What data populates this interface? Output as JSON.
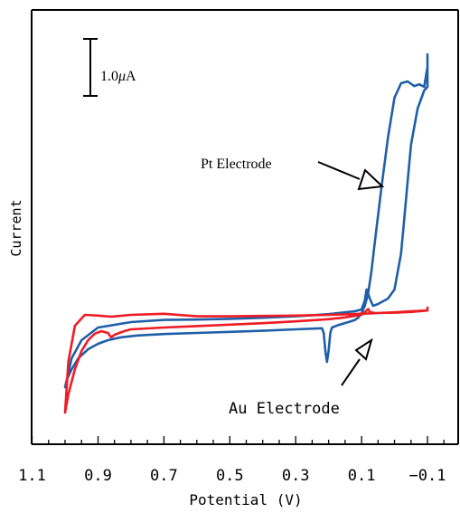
{
  "chart_data": {
    "type": "line",
    "xlabel": "Potential (V)",
    "ylabel": "Current",
    "xlim": [
      1.1,
      -0.15
    ],
    "ylim": [
      -0.95,
      9.0
    ],
    "x_axis_reversed": true,
    "x_ticks": [
      1.1,
      0.9,
      0.7,
      0.5,
      0.3,
      0.1,
      -0.1
    ],
    "x_tick_labels": [
      "1.1",
      "0.9",
      "0.7",
      "0.5",
      "0.3",
      "0.1",
      "−0.1"
    ],
    "grid": false,
    "scale_bar": {
      "label_prefix": "1.0",
      "label_mu": "μ",
      "label_unit": "A",
      "value_uA": 1.0
    },
    "annotations": [
      {
        "text": "Pt Electrode"
      },
      {
        "text": "Au Electrode"
      }
    ],
    "series": [
      {
        "color": "#1f5fa8",
        "curve_label": "Pt Electrode",
        "x": [
          1.0,
          0.995,
          0.98,
          0.96,
          0.93,
          0.9,
          0.87,
          0.83,
          0.78,
          0.7,
          0.6,
          0.5,
          0.4,
          0.3,
          0.22,
          0.215,
          0.21,
          0.205,
          0.2,
          0.195,
          0.19,
          0.17,
          0.14,
          0.12,
          0.11,
          0.1,
          0.09,
          0.08,
          0.07,
          0.06,
          0.04,
          0.02,
          0.0,
          -0.02,
          -0.04,
          -0.06,
          -0.075,
          -0.09,
          -0.1,
          -0.1,
          -0.1,
          -0.09,
          -0.07,
          -0.05,
          -0.04,
          -0.03,
          -0.02,
          0.0,
          0.02,
          0.05,
          0.065,
          0.075,
          0.085,
          0.09,
          0.1,
          0.12,
          0.15,
          0.18,
          0.2,
          0.25,
          0.3,
          0.4,
          0.5,
          0.6,
          0.7,
          0.8,
          0.9,
          0.95,
          0.98,
          0.99,
          0.995,
          1.0
        ],
        "y": [
          -0.7,
          -0.5,
          -0.2,
          0.1,
          0.35,
          0.5,
          0.6,
          0.68,
          0.73,
          0.77,
          0.8,
          0.83,
          0.86,
          0.9,
          0.93,
          0.8,
          0.3,
          0.0,
          0.3,
          0.8,
          0.95,
          1.02,
          1.1,
          1.16,
          1.22,
          1.35,
          1.55,
          1.9,
          2.5,
          3.3,
          4.8,
          6.2,
          7.3,
          7.7,
          7.75,
          7.62,
          7.67,
          7.6,
          8.15,
          8.5,
          7.6,
          7.5,
          7.0,
          6.0,
          5.0,
          4.0,
          3.0,
          2.0,
          1.75,
          1.6,
          1.55,
          1.75,
          2.0,
          1.7,
          1.45,
          1.4,
          1.37,
          1.34,
          1.32,
          1.29,
          1.26,
          1.22,
          1.19,
          1.17,
          1.16,
          1.1,
          0.95,
          0.6,
          0.1,
          -0.3,
          -0.55,
          -0.7
        ]
      },
      {
        "color": "#ee1c24",
        "curve_label": "Au Electrode",
        "x": [
          1.0,
          0.99,
          0.97,
          0.95,
          0.93,
          0.91,
          0.89,
          0.87,
          0.86,
          0.85,
          0.82,
          0.8,
          0.7,
          0.6,
          0.5,
          0.4,
          0.3,
          0.2,
          0.15,
          0.1,
          0.085,
          0.08,
          0.075,
          0.06,
          0.0,
          -0.05,
          -0.1,
          -0.1,
          -0.1,
          -0.05,
          0.0,
          0.1,
          0.2,
          0.3,
          0.4,
          0.5,
          0.6,
          0.7,
          0.8,
          0.86,
          0.9,
          0.94,
          0.97,
          0.99,
          1.0
        ],
        "y": [
          -1.4,
          -0.9,
          -0.2,
          0.3,
          0.6,
          0.78,
          0.85,
          0.8,
          0.68,
          0.75,
          0.85,
          0.9,
          0.95,
          0.99,
          1.03,
          1.07,
          1.12,
          1.18,
          1.23,
          1.3,
          1.42,
          1.46,
          1.38,
          1.35,
          1.36,
          1.38,
          1.42,
          1.5,
          1.42,
          1.4,
          1.37,
          1.33,
          1.3,
          1.28,
          1.27,
          1.26,
          1.26,
          1.33,
          1.3,
          1.25,
          1.28,
          1.3,
          1.0,
          0.0,
          -1.4
        ]
      }
    ]
  }
}
